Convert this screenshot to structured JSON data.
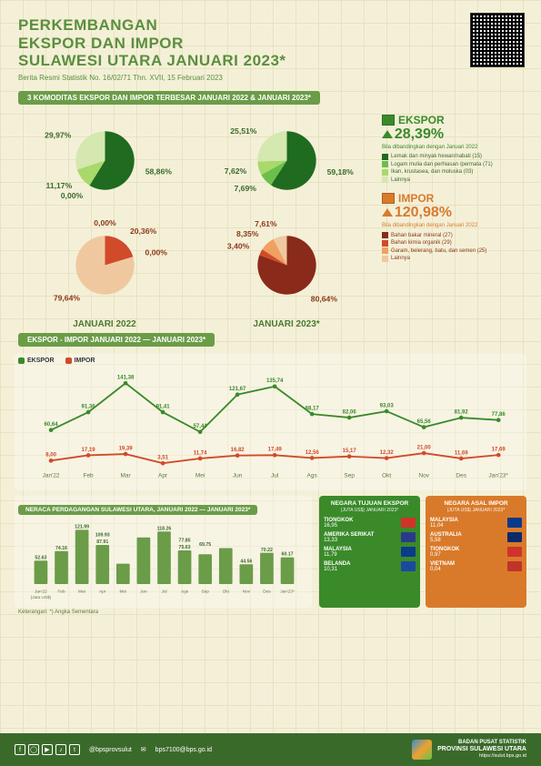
{
  "header": {
    "title_l1": "PERKEMBANGAN",
    "title_l2": "EKSPOR DAN IMPOR",
    "title_l3": "SULAWESI UTARA JANUARI 2023*",
    "subtitle": "Berita Resmi Statistik No. 16/02/71 Thn. XVII, 15 Februari 2023"
  },
  "banner1": "3 KOMODITAS EKSPOR DAN IMPOR TERBESAR JANUARI 2022 & JANUARI 2023*",
  "ekspor_box": {
    "title": "EKSPOR",
    "pct": "28,39%",
    "caption": "Bila dibandingkan dengan Januari 2022",
    "color": "#3a8a2a",
    "items": [
      {
        "c": "#1f6b1f",
        "t": "Lemak dan minyak hewan/nabati (15)"
      },
      {
        "c": "#6bbf4a",
        "t": "Logam mulia dan perhiasan /permata (71)"
      },
      {
        "c": "#a8d96a",
        "t": "Ikan, krustasea, dan moluska (03)"
      },
      {
        "c": "#d4e8b0",
        "t": "Lainnya"
      }
    ]
  },
  "impor_box": {
    "title": "IMPOR",
    "pct": "120,98%",
    "caption": "Bila dibandingkan dengan Januari 2022",
    "color": "#d97a2a",
    "items": [
      {
        "c": "#8a2a1a",
        "t": "Bahan bakar mineral (27)"
      },
      {
        "c": "#d14a2a",
        "t": "Bahan kimia organik (29)"
      },
      {
        "c": "#f0a060",
        "t": "Garam, belerang, batu, dan semen (25)"
      },
      {
        "c": "#f0c8a0",
        "t": "Lainnya"
      }
    ]
  },
  "pies": {
    "y2022": "JANUARI 2022",
    "y2023": "JANUARI 2023*",
    "ekspor_2022": {
      "slices": [
        {
          "v": 58.86,
          "c": "#1f6b1f",
          "l": "58,86%"
        },
        {
          "v": 0.0,
          "c": "#6bbf4a",
          "l": "0,00%"
        },
        {
          "v": 11.17,
          "c": "#a8d96a",
          "l": "11,17%"
        },
        {
          "v": 29.97,
          "c": "#d4e8b0",
          "l": "29,97%"
        }
      ]
    },
    "ekspor_2023": {
      "slices": [
        {
          "v": 59.18,
          "c": "#1f6b1f",
          "l": "59,18%"
        },
        {
          "v": 7.69,
          "c": "#6bbf4a",
          "l": "7,69%"
        },
        {
          "v": 7.62,
          "c": "#a8d96a",
          "l": "7,62%"
        },
        {
          "v": 25.51,
          "c": "#d4e8b0",
          "l": "25,51%"
        }
      ]
    },
    "impor_2022": {
      "slices": [
        {
          "v": 0.0,
          "c": "#8a2a1a",
          "l": "0,00%"
        },
        {
          "v": 20.36,
          "c": "#d14a2a",
          "l": "20,36%"
        },
        {
          "v": 0.0,
          "c": "#f0a060",
          "l": "0,00%"
        },
        {
          "v": 79.64,
          "c": "#f0c8a0",
          "l": "79,64%"
        }
      ]
    },
    "impor_2023": {
      "slices": [
        {
          "v": 80.64,
          "c": "#8a2a1a",
          "l": "80,64%"
        },
        {
          "v": 3.4,
          "c": "#d14a2a",
          "l": "3,40%"
        },
        {
          "v": 8.35,
          "c": "#f0a060",
          "l": "8,35%"
        },
        {
          "v": 7.61,
          "c": "#f0c8a0",
          "l": "7,61%"
        }
      ]
    }
  },
  "banner2": "EKSPOR - IMPOR JANUARI 2022 — JANUARI 2023*",
  "line": {
    "months": [
      "Jan'22",
      "Feb",
      "Mar",
      "Apr",
      "Mei",
      "Jun",
      "Jul",
      "Ags",
      "Sep",
      "Okt",
      "Nov",
      "Des",
      "Jan'23*"
    ],
    "ekspor": {
      "label": "EKSPOR",
      "color": "#3a8a2a",
      "values": [
        60.64,
        91.36,
        141.38,
        91.41,
        57.44,
        121.67,
        135.74,
        88.17,
        82.06,
        93.03,
        65.56,
        81.92,
        77.86
      ]
    },
    "impor": {
      "label": "IMPOR",
      "color": "#d14a2a",
      "values": [
        8.0,
        17.19,
        19.39,
        3.51,
        11.74,
        16.82,
        17.49,
        12.56,
        15.17,
        12.32,
        21.0,
        11.69,
        17.69
      ]
    },
    "ymax": 160
  },
  "banner3": "NERACA PERDAGANGAN SULAWESI UTARA, JANUARI 2022 — JANUARI 2023*",
  "bars": {
    "months": [
      "Jan'22",
      "Feb",
      "Mar",
      "Apr",
      "Mei",
      "Jun",
      "Jul",
      "Ags",
      "Sep",
      "Okt",
      "Nov",
      "Des",
      "Jan'23*"
    ],
    "values": [
      52.63,
      74.16,
      121.99,
      87.91,
      45.7,
      104.85,
      118.26,
      75.63,
      66.88,
      80.71,
      44.56,
      70.22,
      60.17
    ],
    "shown": [
      "52.63",
      "74.16",
      "121.99",
      "87.91",
      "",
      "",
      "118.26",
      "75.63",
      "",
      "",
      "44.56",
      "70.22",
      "60.17"
    ],
    "extra": [
      "",
      "",
      "",
      "109.93",
      "",
      "",
      "",
      "77.85",
      "69.75",
      "",
      "",
      "",
      ""
    ],
    "color": "#6b9c48",
    "ymax": 130,
    "unit": "(Juta US$)"
  },
  "countries": {
    "ekspor": {
      "title": "NEGARA TUJUAN EKSPOR",
      "sub": "(JUTA US$) JANUARI 2023*",
      "bg": "#3a8a2a",
      "rows": [
        {
          "n": "TIONGKOK",
          "v": "16,95",
          "f": "#d0332a"
        },
        {
          "n": "AMERIKA SERIKAT",
          "v": "13,33",
          "f": "#2a3a8a"
        },
        {
          "n": "MALAYSIA",
          "v": "11,79",
          "f": "#0a3a8a"
        },
        {
          "n": "BELANDA",
          "v": "10,31",
          "f": "#1a4aa0"
        }
      ]
    },
    "impor": {
      "title": "NEGARA ASAL IMPOR",
      "sub": "(JUTA US$) JANUARI 2023*",
      "bg": "#d97a2a",
      "rows": [
        {
          "n": "MALAYSIA",
          "v": "11,04",
          "f": "#0a3a8a"
        },
        {
          "n": "AUSTRALIA",
          "v": "5,58",
          "f": "#0a2a6a"
        },
        {
          "n": "TIONGKOK",
          "v": "0,97",
          "f": "#d0332a"
        },
        {
          "n": "VIETNAM",
          "v": "0,04",
          "f": "#c0332a"
        }
      ]
    }
  },
  "note": "Keterangan: *) Angka Sementara",
  "footer": {
    "handle": "@bpsprovsulut",
    "email": "bps7100@bps.go.id",
    "org_l1": "BADAN PUSAT STATISTIK",
    "org_l2": "PROVINSI SULAWESI UTARA",
    "url": "https://sulut.bps.go.id"
  }
}
